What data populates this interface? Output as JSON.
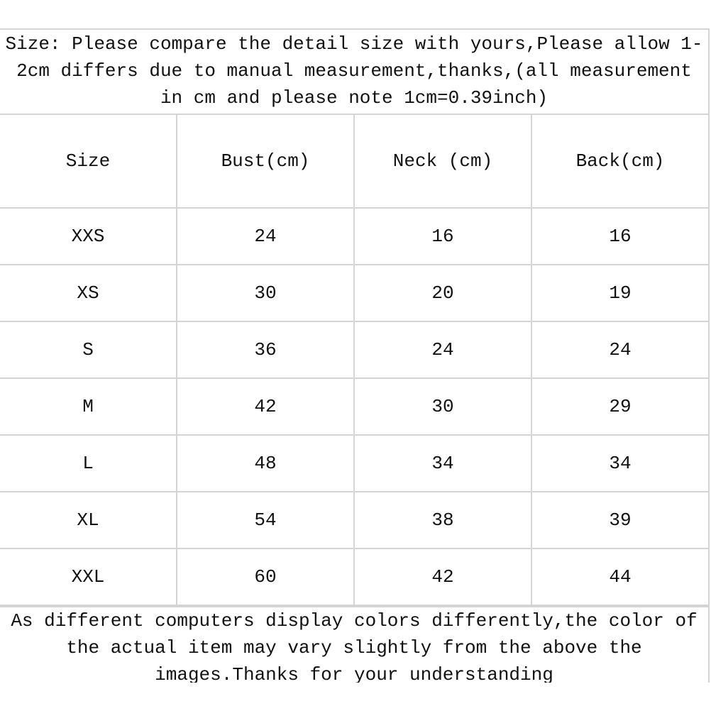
{
  "intro_note": "Size: Please compare the detail size with yours,Please allow 1-2cm differs due to manual measurement,thanks,(all measurement in cm and please note 1cm=0.39inch)",
  "table": {
    "headers": [
      "Size",
      "Bust(cm)",
      "Neck (cm)",
      "Back(cm)"
    ],
    "rows": [
      [
        "XXS",
        "24",
        "16",
        "16"
      ],
      [
        "XS",
        "30",
        "20",
        "19"
      ],
      [
        "S",
        "36",
        "24",
        "24"
      ],
      [
        "M",
        "42",
        "30",
        "29"
      ],
      [
        "L",
        "48",
        "34",
        "34"
      ],
      [
        "XL",
        "54",
        "38",
        "39"
      ],
      [
        "XXL",
        "60",
        "42",
        "44"
      ]
    ]
  },
  "footer_note": "As different computers display colors differently,the color of the actual item may vary slightly from the above the images.Thanks for your understanding"
}
